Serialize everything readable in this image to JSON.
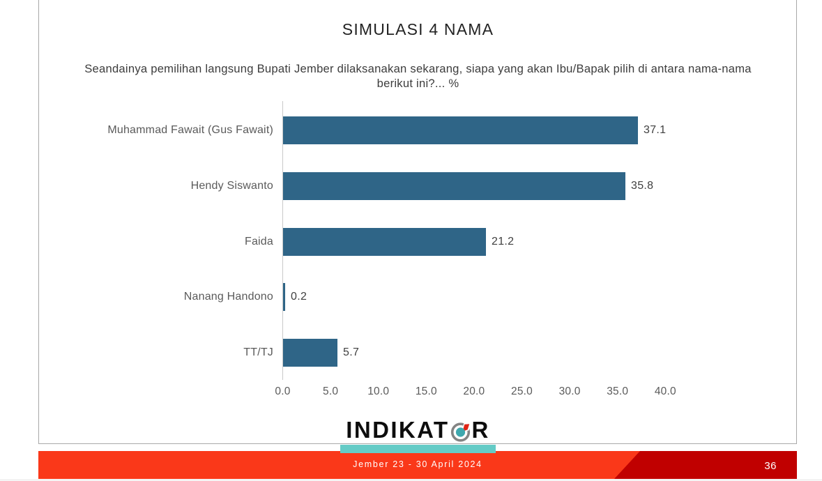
{
  "slide": {
    "title": "SIMULASI 4 NAMA",
    "question_line1": "Seandainya pemilihan langsung Bupati Jember dilaksanakan sekarang, siapa yang akan Ibu/Bapak pilih di antara nama-nama",
    "question_line2": "berikut ini?... %"
  },
  "chart_data": {
    "type": "bar",
    "orientation": "horizontal",
    "title": "SIMULASI 4 NAMA",
    "categories": [
      "Muhammad Fawait (Gus Fawait)",
      "Hendy Siswanto",
      "Faida",
      "Nanang Handono",
      "TT/TJ"
    ],
    "values": [
      37.1,
      35.8,
      21.2,
      0.2,
      5.7
    ],
    "value_labels": [
      "37.1",
      "35.8",
      "21.2",
      "0.2",
      "5.7"
    ],
    "xlabel": "",
    "ylabel": "",
    "xlim": [
      0,
      40
    ],
    "x_tick_labels": [
      "0.0",
      "5.0",
      "10.0",
      "15.0",
      "20.0",
      "25.0",
      "30.0",
      "35.0",
      "40.0"
    ],
    "unit": "%",
    "grid": false,
    "legend": false,
    "bar_color": "#2f6587"
  },
  "logo": {
    "text_left": "INDIKAT",
    "text_right": "R",
    "full_name": "INDIKATOR",
    "compass_icon": "compass-icon",
    "underline_color": "#64cbc6"
  },
  "footer": {
    "date_text": "Jember 23 - 30 April 2024",
    "page_number": "36",
    "band_color": "#fa3819",
    "accent_color": "#c00000"
  },
  "colors": {
    "bar": "#2f6587",
    "frame": "#a8a8a8",
    "title_text": "#232323",
    "label_text": "#5a5a5a"
  }
}
